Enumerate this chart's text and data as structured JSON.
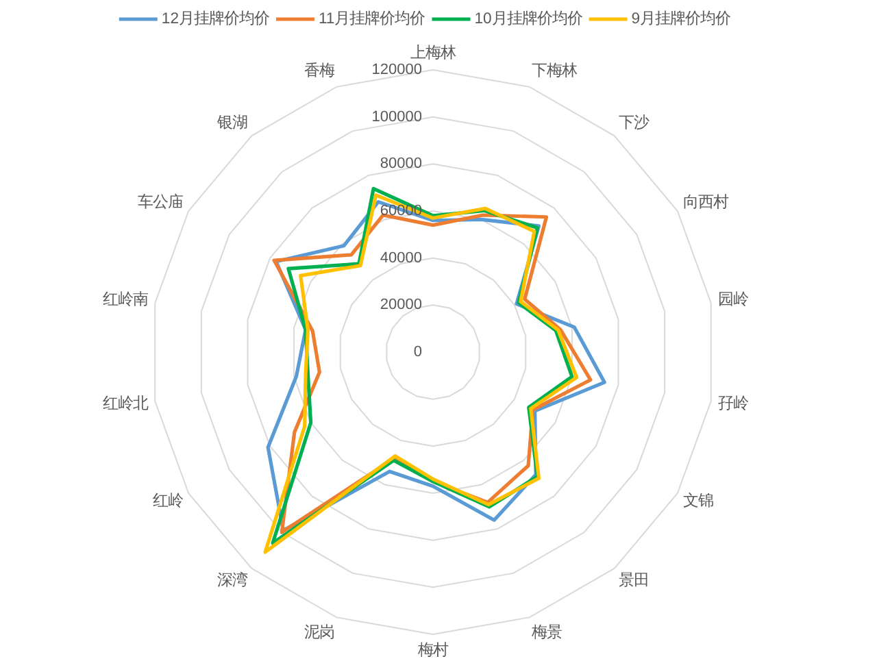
{
  "chart_data": {
    "type": "radar",
    "categories": [
      "上梅林",
      "下梅林",
      "下沙",
      "向西村",
      "园岭",
      "孖岭",
      "文锦",
      "景田",
      "梅景",
      "梅村",
      "泥岗",
      "深湾",
      "红岭",
      "红岭北",
      "红岭南",
      "车公庙",
      "银湖",
      "香梅"
    ],
    "series": [
      {
        "name": "12月挂牌价均价",
        "color": "#5b9bd5",
        "values": [
          56000,
          60000,
          70000,
          41000,
          61000,
          74000,
          50000,
          68000,
          76000,
          57000,
          54000,
          99000,
          81000,
          59000,
          55000,
          77000,
          59000,
          68000
        ]
      },
      {
        "name": "11月挂牌价均价",
        "color": "#ed7d31",
        "values": [
          54000,
          62000,
          75000,
          45000,
          55000,
          68000,
          49000,
          63000,
          68000,
          55000,
          48000,
          100000,
          68000,
          49000,
          52000,
          78000,
          54000,
          62000
        ]
      },
      {
        "name": "10月挂牌价均价",
        "color": "#00b050",
        "values": [
          58000,
          64000,
          69000,
          42000,
          53000,
          60000,
          47000,
          69000,
          70000,
          55000,
          49000,
          106000,
          60000,
          54000,
          55000,
          71000,
          49000,
          74000
        ]
      },
      {
        "name": "9月挂牌价均价",
        "color": "#ffc000",
        "values": [
          57000,
          65000,
          67000,
          43000,
          54000,
          62000,
          48000,
          70000,
          69000,
          54000,
          47000,
          111000,
          63000,
          55000,
          54000,
          65000,
          48000,
          71000
        ]
      }
    ],
    "ylim": [
      0,
      120000
    ],
    "yticks": [
      0,
      20000,
      40000,
      60000,
      80000,
      100000,
      120000
    ],
    "grid": true,
    "legend": "top"
  }
}
